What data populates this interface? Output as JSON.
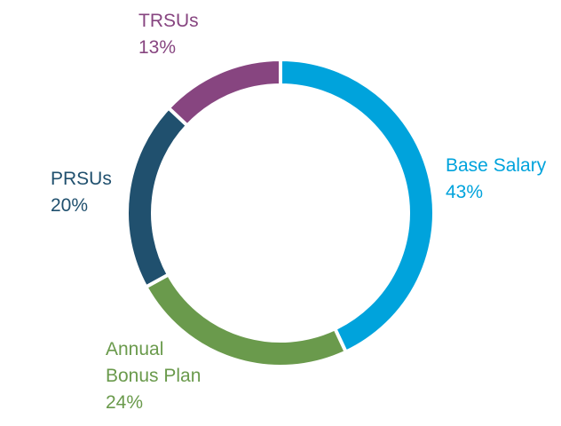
{
  "chart_data": {
    "type": "pie",
    "variant": "donut",
    "title": "",
    "legend": "none",
    "slices": [
      {
        "name": "Base Salary",
        "label_lines": [
          "Base Salary"
        ],
        "value": 43,
        "value_label": "43%",
        "color": "#00A3DC"
      },
      {
        "name": "Annual Bonus Plan",
        "label_lines": [
          "Annual",
          "Bonus Plan"
        ],
        "value": 24,
        "value_label": "24%",
        "color": "#6A9A4C"
      },
      {
        "name": "PRSUs",
        "label_lines": [
          "PRSUs"
        ],
        "value": 20,
        "value_label": "20%",
        "color": "#20506E"
      },
      {
        "name": "TRSUs",
        "label_lines": [
          "TRSUs"
        ],
        "value": 13,
        "value_label": "13%",
        "color": "#874580"
      }
    ]
  }
}
